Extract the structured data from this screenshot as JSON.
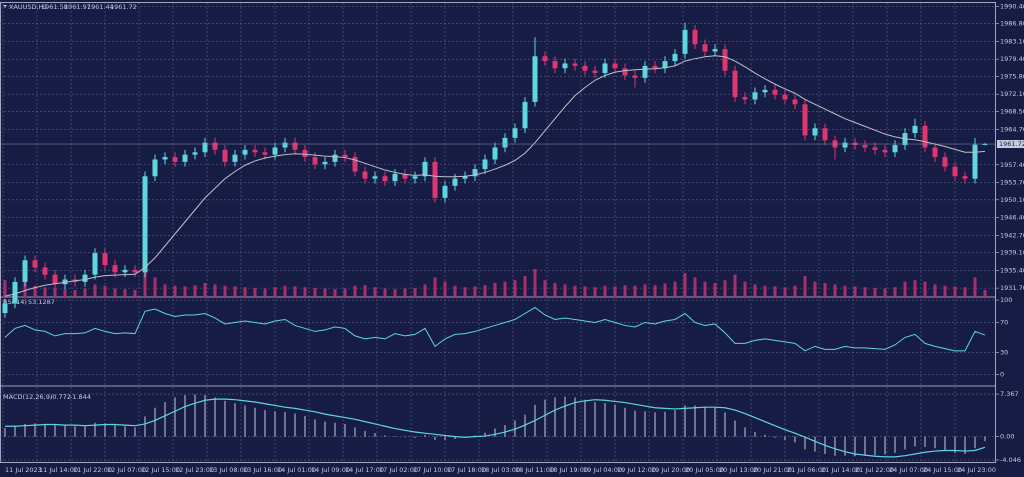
{
  "chart_data": {
    "type": "candlestick",
    "symbol": "XAUUSD,H1",
    "background": "#161c44",
    "bull_color": "#5fd6df",
    "bear_color": "#e0356f",
    "grid": true,
    "open": [
      1926.5,
      1928.5,
      1933.0,
      1937.5,
      1936.0,
      1934.5,
      1932.5,
      1933.5,
      1933.0,
      1934.5,
      1939.0,
      1936.5,
      1935.0,
      1935.5,
      1935.0,
      1955.0,
      1958.5,
      1959.0,
      1958.0,
      1959.5,
      1960.0,
      1962.0,
      1960.5,
      1958.0,
      1959.5,
      1960.5,
      1960.0,
      1959.5,
      1961.0,
      1962.0,
      1960.5,
      1959.0,
      1957.5,
      1958.0,
      1959.5,
      1959.0,
      1956.0,
      1954.5,
      1955.0,
      1954.0,
      1955.5,
      1954.5,
      1955.0,
      1958.0,
      1950.5,
      1953.0,
      1954.5,
      1955.0,
      1956.5,
      1958.5,
      1961.0,
      1963.0,
      1965.0,
      1970.5,
      1980.0,
      1979.0,
      1977.5,
      1978.5,
      1978.0,
      1977.0,
      1976.5,
      1978.5,
      1977.5,
      1976.0,
      1975.5,
      1978.0,
      1977.5,
      1979.0,
      1980.5,
      1985.5,
      1982.5,
      1981.0,
      1981.5,
      1977.0,
      1971.5,
      1971.0,
      1972.5,
      1973.0,
      1972.0,
      1971.0,
      1970.0,
      1963.5,
      1965.0,
      1962.5,
      1961.0,
      1962.0,
      1961.5,
      1961.0,
      1960.5,
      1960.0,
      1961.5,
      1964.0,
      1965.5,
      1961.0,
      1959.0,
      1957.0,
      1955.0,
      1954.5,
      1961.58
    ],
    "high": [
      1929.5,
      1934.0,
      1938.5,
      1938.5,
      1937.0,
      1935.5,
      1934.5,
      1934.5,
      1935.5,
      1940.0,
      1940.0,
      1937.5,
      1936.5,
      1936.5,
      1956.0,
      1959.5,
      1960.0,
      1960.0,
      1960.5,
      1961.0,
      1963.0,
      1963.0,
      1961.5,
      1960.5,
      1961.5,
      1961.5,
      1961.0,
      1962.0,
      1963.0,
      1963.0,
      1961.5,
      1960.0,
      1959.0,
      1960.5,
      1960.5,
      1960.0,
      1957.0,
      1956.0,
      1956.0,
      1956.5,
      1956.5,
      1956.0,
      1959.0,
      1959.0,
      1954.0,
      1955.5,
      1956.0,
      1957.5,
      1959.5,
      1962.0,
      1964.0,
      1966.0,
      1971.5,
      1984.0,
      1981.0,
      1980.0,
      1979.5,
      1979.5,
      1979.0,
      1978.0,
      1979.5,
      1979.5,
      1978.5,
      1977.0,
      1979.0,
      1979.0,
      1980.0,
      1981.5,
      1987.0,
      1986.5,
      1983.5,
      1982.5,
      1982.5,
      1978.0,
      1972.5,
      1973.5,
      1974.0,
      1974.0,
      1973.0,
      1972.0,
      1971.0,
      1966.0,
      1966.0,
      1963.5,
      1963.0,
      1963.0,
      1962.5,
      1962.0,
      1961.5,
      1962.5,
      1965.0,
      1967.0,
      1966.5,
      1962.0,
      1960.0,
      1958.0,
      1956.0,
      1963.0,
      1961.97
    ],
    "low": [
      1925.5,
      1927.5,
      1932.0,
      1935.0,
      1933.5,
      1931.5,
      1931.5,
      1932.0,
      1932.0,
      1933.5,
      1935.5,
      1934.0,
      1934.0,
      1934.0,
      1934.0,
      1954.0,
      1957.5,
      1957.0,
      1957.0,
      1958.5,
      1959.0,
      1959.5,
      1957.0,
      1957.0,
      1958.5,
      1959.0,
      1958.5,
      1958.5,
      1960.0,
      1959.5,
      1958.0,
      1956.5,
      1956.5,
      1957.0,
      1958.0,
      1955.0,
      1953.5,
      1953.5,
      1953.0,
      1953.0,
      1953.5,
      1953.5,
      1954.0,
      1949.5,
      1949.5,
      1952.0,
      1953.5,
      1954.0,
      1955.5,
      1957.5,
      1960.0,
      1962.0,
      1964.0,
      1969.5,
      1978.0,
      1976.5,
      1976.5,
      1977.0,
      1976.0,
      1975.5,
      1975.5,
      1976.5,
      1975.0,
      1973.5,
      1974.5,
      1976.5,
      1976.5,
      1978.0,
      1979.5,
      1981.5,
      1980.0,
      1980.0,
      1976.0,
      1970.5,
      1970.0,
      1970.0,
      1971.5,
      1971.0,
      1970.0,
      1969.0,
      1962.5,
      1962.5,
      1961.5,
      1958.5,
      1960.0,
      1960.5,
      1960.0,
      1959.5,
      1959.0,
      1959.0,
      1960.5,
      1963.0,
      1960.0,
      1958.0,
      1956.0,
      1954.0,
      1953.5,
      1953.5,
      1961.44
    ],
    "close": [
      1928.5,
      1933.0,
      1937.5,
      1936.0,
      1934.5,
      1932.5,
      1933.5,
      1933.0,
      1934.5,
      1939.0,
      1936.5,
      1935.0,
      1935.5,
      1935.0,
      1955.0,
      1958.5,
      1959.0,
      1958.0,
      1959.5,
      1960.0,
      1962.0,
      1960.5,
      1958.0,
      1959.5,
      1960.5,
      1960.0,
      1959.5,
      1961.0,
      1962.0,
      1960.5,
      1959.0,
      1957.5,
      1958.0,
      1959.5,
      1959.0,
      1956.0,
      1954.5,
      1955.0,
      1954.0,
      1955.5,
      1954.5,
      1955.0,
      1958.0,
      1950.5,
      1953.0,
      1954.5,
      1955.0,
      1956.5,
      1958.5,
      1961.0,
      1963.0,
      1965.0,
      1970.5,
      1980.0,
      1979.0,
      1977.5,
      1978.5,
      1978.0,
      1977.0,
      1976.5,
      1978.5,
      1977.5,
      1976.0,
      1975.5,
      1978.0,
      1977.5,
      1979.0,
      1980.5,
      1985.5,
      1982.5,
      1981.0,
      1981.5,
      1977.0,
      1971.5,
      1971.0,
      1972.5,
      1973.0,
      1972.0,
      1971.0,
      1970.0,
      1963.5,
      1965.0,
      1962.5,
      1961.0,
      1962.0,
      1961.5,
      1961.0,
      1960.5,
      1960.0,
      1961.5,
      1964.0,
      1965.5,
      1961.0,
      1959.0,
      1957.0,
      1955.0,
      1954.5,
      1961.58,
      1961.72
    ],
    "ma": {
      "color": "#bfc0c8",
      "values": [
        1930,
        1930.5,
        1931.2,
        1931.8,
        1932.3,
        1932.6,
        1932.9,
        1933.2,
        1933.5,
        1934,
        1934.3,
        1934.4,
        1934.5,
        1934.6,
        1936,
        1938,
        1940.5,
        1943,
        1945.5,
        1948,
        1950.5,
        1952.5,
        1954.5,
        1956,
        1957.3,
        1958.2,
        1958.8,
        1959.2,
        1959.5,
        1959.7,
        1959.6,
        1959.4,
        1959.2,
        1959.1,
        1958.9,
        1958.4,
        1957.7,
        1957.0,
        1956.3,
        1955.8,
        1955.4,
        1955.2,
        1955.3,
        1955.0,
        1954.9,
        1954.9,
        1955.0,
        1955.3,
        1955.8,
        1956.5,
        1957.3,
        1958.3,
        1959.8,
        1962,
        1964.5,
        1967,
        1969.5,
        1971.8,
        1973.5,
        1975,
        1976,
        1976.7,
        1977,
        1977.2,
        1977.3,
        1977.4,
        1977.6,
        1978,
        1979,
        1979.5,
        1979.9,
        1980.1,
        1979.9,
        1979,
        1977.8,
        1976.5,
        1975.3,
        1974.2,
        1973.2,
        1972.3,
        1971,
        1970,
        1969,
        1968,
        1967,
        1966.2,
        1965.4,
        1964.6,
        1963.8,
        1963.2,
        1962.8,
        1962.6,
        1962.2,
        1961.7,
        1961.2,
        1960.6,
        1960,
        1960,
        1960.2
      ]
    },
    "volume": {
      "color": "#a8306a",
      "values": [
        60,
        45,
        55,
        40,
        35,
        30,
        28,
        25,
        30,
        45,
        40,
        30,
        28,
        25,
        95,
        70,
        45,
        40,
        38,
        42,
        50,
        45,
        40,
        38,
        35,
        32,
        30,
        35,
        40,
        38,
        35,
        32,
        30,
        28,
        30,
        40,
        42,
        35,
        30,
        28,
        30,
        32,
        45,
        70,
        55,
        40,
        35,
        38,
        42,
        50,
        55,
        60,
        75,
        100,
        60,
        50,
        45,
        40,
        38,
        35,
        40,
        38,
        42,
        40,
        45,
        42,
        48,
        55,
        85,
        70,
        55,
        50,
        60,
        80,
        55,
        45,
        40,
        38,
        35,
        40,
        75,
        55,
        50,
        45,
        40,
        38,
        35,
        32,
        30,
        35,
        55,
        60,
        55,
        45,
        40,
        38,
        35,
        70,
        25
      ]
    },
    "ylim": [
      1929.85,
      1991.1
    ],
    "yticks": [
      {
        "value": 1990.4,
        "label": "1990.40"
      },
      {
        "value": 1986.8,
        "label": "1986.80"
      },
      {
        "value": 1983.1,
        "label": "1983.10"
      },
      {
        "value": 1979.4,
        "label": "1979.40"
      },
      {
        "value": 1975.8,
        "label": "1975.80"
      },
      {
        "value": 1972.1,
        "label": "1972.10"
      },
      {
        "value": 1968.5,
        "label": "1968.50"
      },
      {
        "value": 1964.7,
        "label": "1964.70"
      },
      {
        "value": 1957.4,
        "label": "1957.40"
      },
      {
        "value": 1953.7,
        "label": "1953.70"
      },
      {
        "value": 1950.1,
        "label": "1950.10"
      },
      {
        "value": 1946.4,
        "label": "1946.40"
      },
      {
        "value": 1942.7,
        "label": "1942.70"
      },
      {
        "value": 1939.1,
        "label": "1939.10"
      },
      {
        "value": 1935.4,
        "label": "1935.40"
      },
      {
        "value": 1931.7,
        "label": "1931.70"
      }
    ],
    "x_labels": [
      "11 Jul 2023",
      "11 Jul 14:00",
      "11 Jul 22:00",
      "12 Jul 07:00",
      "12 Jul 15:00",
      "12 Jul 23:00",
      "13 Jul 08:00",
      "13 Jul 16:00",
      "14 Jul 01:00",
      "14 Jul 09:00",
      "14 Jul 17:00",
      "17 Jul 02:00",
      "17 Jul 10:00",
      "17 Jul 18:00",
      "18 Jul 03:00",
      "18 Jul 11:00",
      "18 Jul 19:00",
      "19 Jul 04:00",
      "19 Jul 12:00",
      "19 Jul 20:00",
      "20 Jul 05:00",
      "20 Jul 13:00",
      "20 Jul 21:00",
      "21 Jul 06:00",
      "21 Jul 14:00",
      "21 Jul 22:00",
      "24 Jul 07:00",
      "24 Jul 15:00",
      "24 Jul 23:00"
    ],
    "rsi": {
      "title": "RSI(14)",
      "color": "#5fd6df",
      "ylim": [
        -15.1,
        104.1
      ],
      "yticks": [
        100,
        70,
        30,
        0
      ],
      "values": [
        50,
        62,
        66,
        60,
        58,
        52,
        55,
        55,
        56,
        62,
        58,
        55,
        56,
        55,
        85,
        88,
        82,
        78,
        80,
        80,
        82,
        76,
        68,
        70,
        72,
        70,
        68,
        72,
        74,
        66,
        62,
        58,
        60,
        64,
        62,
        52,
        48,
        50,
        48,
        55,
        52,
        54,
        62,
        38,
        48,
        54,
        55,
        58,
        62,
        66,
        70,
        74,
        82,
        90,
        80,
        74,
        76,
        74,
        72,
        70,
        74,
        70,
        66,
        64,
        70,
        68,
        72,
        74,
        82,
        70,
        66,
        68,
        56,
        42,
        42,
        46,
        48,
        46,
        44,
        42,
        32,
        38,
        34,
        34,
        38,
        36,
        36,
        35,
        34,
        40,
        50,
        54,
        42,
        38,
        35,
        32,
        32,
        58,
        53.1287
      ]
    },
    "macd": {
      "title": "MACD(12,26,9)",
      "ylim": [
        -4.39,
        8.77
      ],
      "yticks": [
        7.367,
        {
          "value": 0,
          "label": "0.00"
        },
        -4.046
      ],
      "main": {
        "color": "#c9cad6",
        "values": [
          1.5,
          1.8,
          2.2,
          2.3,
          2.2,
          2.0,
          1.9,
          1.8,
          1.9,
          2.4,
          2.3,
          2.0,
          1.8,
          1.6,
          3.5,
          5.0,
          6.0,
          6.8,
          7.2,
          7.3,
          7.2,
          6.8,
          6.2,
          5.8,
          5.4,
          5.0,
          4.6,
          4.4,
          4.3,
          4.0,
          3.6,
          3.0,
          2.6,
          2.4,
          2.2,
          1.6,
          1.0,
          0.6,
          0.2,
          0.1,
          -0.1,
          -0.2,
          0.3,
          -0.6,
          -0.6,
          -0.4,
          -0.2,
          0.2,
          0.7,
          1.4,
          2.0,
          2.8,
          3.8,
          5.5,
          6.4,
          6.8,
          6.9,
          6.8,
          6.4,
          6.0,
          5.8,
          5.5,
          5.0,
          4.5,
          4.4,
          4.2,
          4.3,
          4.6,
          5.4,
          5.4,
          5.2,
          5.0,
          4.2,
          2.8,
          1.6,
          0.8,
          0.3,
          -0.2,
          -0.6,
          -1.0,
          -2.2,
          -2.6,
          -3.0,
          -3.3,
          -3.3,
          -3.4,
          -3.3,
          -3.2,
          -3.1,
          -2.8,
          -2.2,
          -1.7,
          -1.8,
          -2.0,
          -2.4,
          -2.8,
          -3.0,
          -2.0,
          -0.772
        ]
      },
      "signal": {
        "color": "#5fd6df",
        "values": [
          1.8,
          1.8,
          1.9,
          2.0,
          2.1,
          2.1,
          2.0,
          2.0,
          1.9,
          2.0,
          2.1,
          2.1,
          2.0,
          1.9,
          2.2,
          2.8,
          3.6,
          4.4,
          5.2,
          5.8,
          6.3,
          6.5,
          6.5,
          6.4,
          6.2,
          6.0,
          5.7,
          5.4,
          5.1,
          4.9,
          4.6,
          4.3,
          3.9,
          3.6,
          3.3,
          3.0,
          2.6,
          2.2,
          1.8,
          1.4,
          1.1,
          0.8,
          0.6,
          0.4,
          0.2,
          0.0,
          -0.1,
          0.0,
          0.1,
          0.4,
          0.8,
          1.3,
          2.0,
          2.8,
          3.7,
          4.6,
          5.3,
          5.9,
          6.2,
          6.4,
          6.3,
          6.1,
          5.9,
          5.6,
          5.3,
          5.0,
          4.9,
          4.8,
          4.9,
          5.0,
          5.1,
          5.1,
          5.0,
          4.6,
          4.0,
          3.3,
          2.6,
          1.9,
          1.2,
          0.6,
          -0.1,
          -0.8,
          -1.5,
          -2.1,
          -2.6,
          -3.0,
          -3.2,
          -3.4,
          -3.5,
          -3.5,
          -3.3,
          -3.0,
          -2.7,
          -2.5,
          -2.4,
          -2.4,
          -2.5,
          -2.4,
          -1.844
        ]
      }
    }
  }
}
